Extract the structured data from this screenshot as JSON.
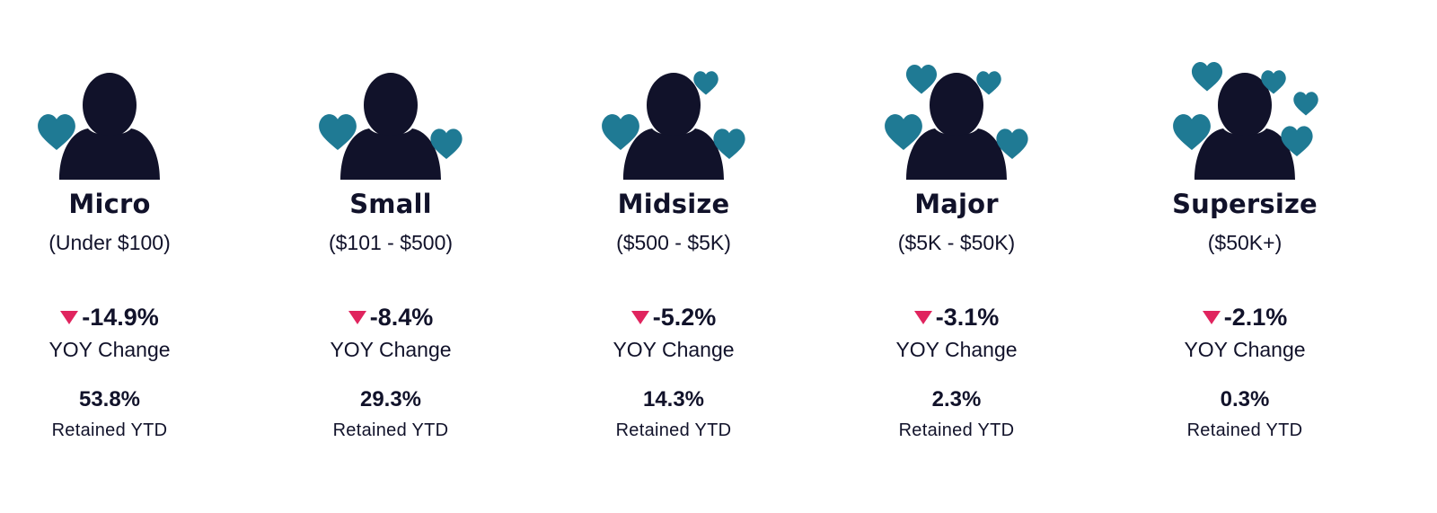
{
  "colors": {
    "person": "#11122a",
    "heart": "#1f7a94",
    "down_arrow": "#e0245e",
    "text": "#11122a"
  },
  "tiers": [
    {
      "name": "Micro",
      "range": "(Under $100)",
      "yoy_change": "-14.9%",
      "yoy_label": "YOY Change",
      "retained_value": "53.8%",
      "retained_label": "Retained YTD",
      "heart_count": 1
    },
    {
      "name": "Small",
      "range": "($101 - $500)",
      "yoy_change": "-8.4%",
      "yoy_label": "YOY Change",
      "retained_value": "29.3%",
      "retained_label": "Retained YTD",
      "heart_count": 2
    },
    {
      "name": "Midsize",
      "range": "($500 - $5K)",
      "yoy_change": "-5.2%",
      "yoy_label": "YOY Change",
      "retained_value": "14.3%",
      "retained_label": "Retained YTD",
      "heart_count": 3
    },
    {
      "name": "Major",
      "range": "($5K - $50K)",
      "yoy_change": "-3.1%",
      "yoy_label": "YOY Change",
      "retained_value": "2.3%",
      "retained_label": "Retained YTD",
      "heart_count": 4
    },
    {
      "name": "Supersize",
      "range": "($50K+)",
      "yoy_change": "-2.1%",
      "yoy_label": "YOY Change",
      "retained_value": "0.3%",
      "retained_label": "Retained YTD",
      "heart_count": 5
    }
  ]
}
